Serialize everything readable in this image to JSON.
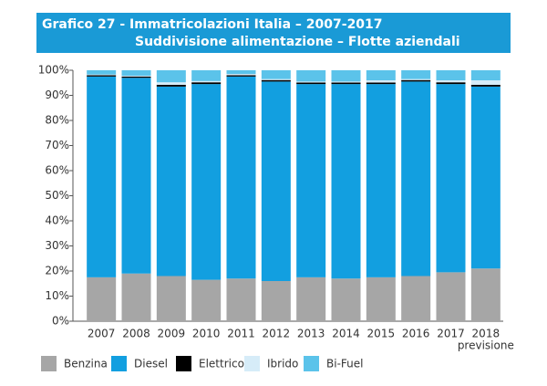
{
  "chart_data": {
    "type": "stacked_bar",
    "title": "Grafico 27 - Immatricolazioni Italia – 2007-2017",
    "subtitle": "Suddivisione alimentazione – Flotte aziendali",
    "categories": [
      "2007",
      "2008",
      "2009",
      "2010",
      "2011",
      "2012",
      "2013",
      "2014",
      "2015",
      "2016",
      "2017",
      "2018"
    ],
    "annotation": "previsione",
    "series": [
      {
        "name": "Benzina",
        "color": "#a6a6a6",
        "values": [
          17.5,
          19,
          18,
          16.5,
          17,
          16,
          17.5,
          17,
          17.5,
          18,
          19.5,
          21
        ]
      },
      {
        "name": "Diesel",
        "color": "#129fe0",
        "values": [
          80,
          78,
          75.5,
          78,
          80.5,
          79.5,
          77,
          77.5,
          77,
          77.5,
          75,
          72.5
        ]
      },
      {
        "name": "Elettrico",
        "color": "#000000",
        "values": [
          0.5,
          0.5,
          0.7,
          0.7,
          0.5,
          0.6,
          0.6,
          0.6,
          0.6,
          0.6,
          0.7,
          0.7
        ]
      },
      {
        "name": "Ibrido",
        "color": "#d6ecf8",
        "values": [
          0.3,
          0.3,
          1,
          0.5,
          0.5,
          0.4,
          0.4,
          0.4,
          0.9,
          0.4,
          0.8,
          1.8
        ]
      },
      {
        "name": "Bi-Fuel",
        "color": "#5bc3ea",
        "values": [
          1.7,
          2.2,
          4.8,
          4.3,
          1.5,
          3.5,
          4.5,
          4.5,
          4,
          3.5,
          4,
          4
        ]
      }
    ],
    "ylim": [
      0,
      100
    ],
    "yticks": [
      {
        "value": 0,
        "label": "0%"
      },
      {
        "value": 10,
        "label": "10%"
      },
      {
        "value": 20,
        "label": "20%"
      },
      {
        "value": 30,
        "label": "30%"
      },
      {
        "value": 40,
        "label": "40%"
      },
      {
        "value": 50,
        "label": "50%"
      },
      {
        "value": 60,
        "label": "60%"
      },
      {
        "value": 70,
        "label": "70%"
      },
      {
        "value": 80,
        "label": "80%"
      },
      {
        "value": 90,
        "label": "90%"
      },
      {
        "value": 100,
        "label": "100%"
      }
    ],
    "grid": false
  }
}
